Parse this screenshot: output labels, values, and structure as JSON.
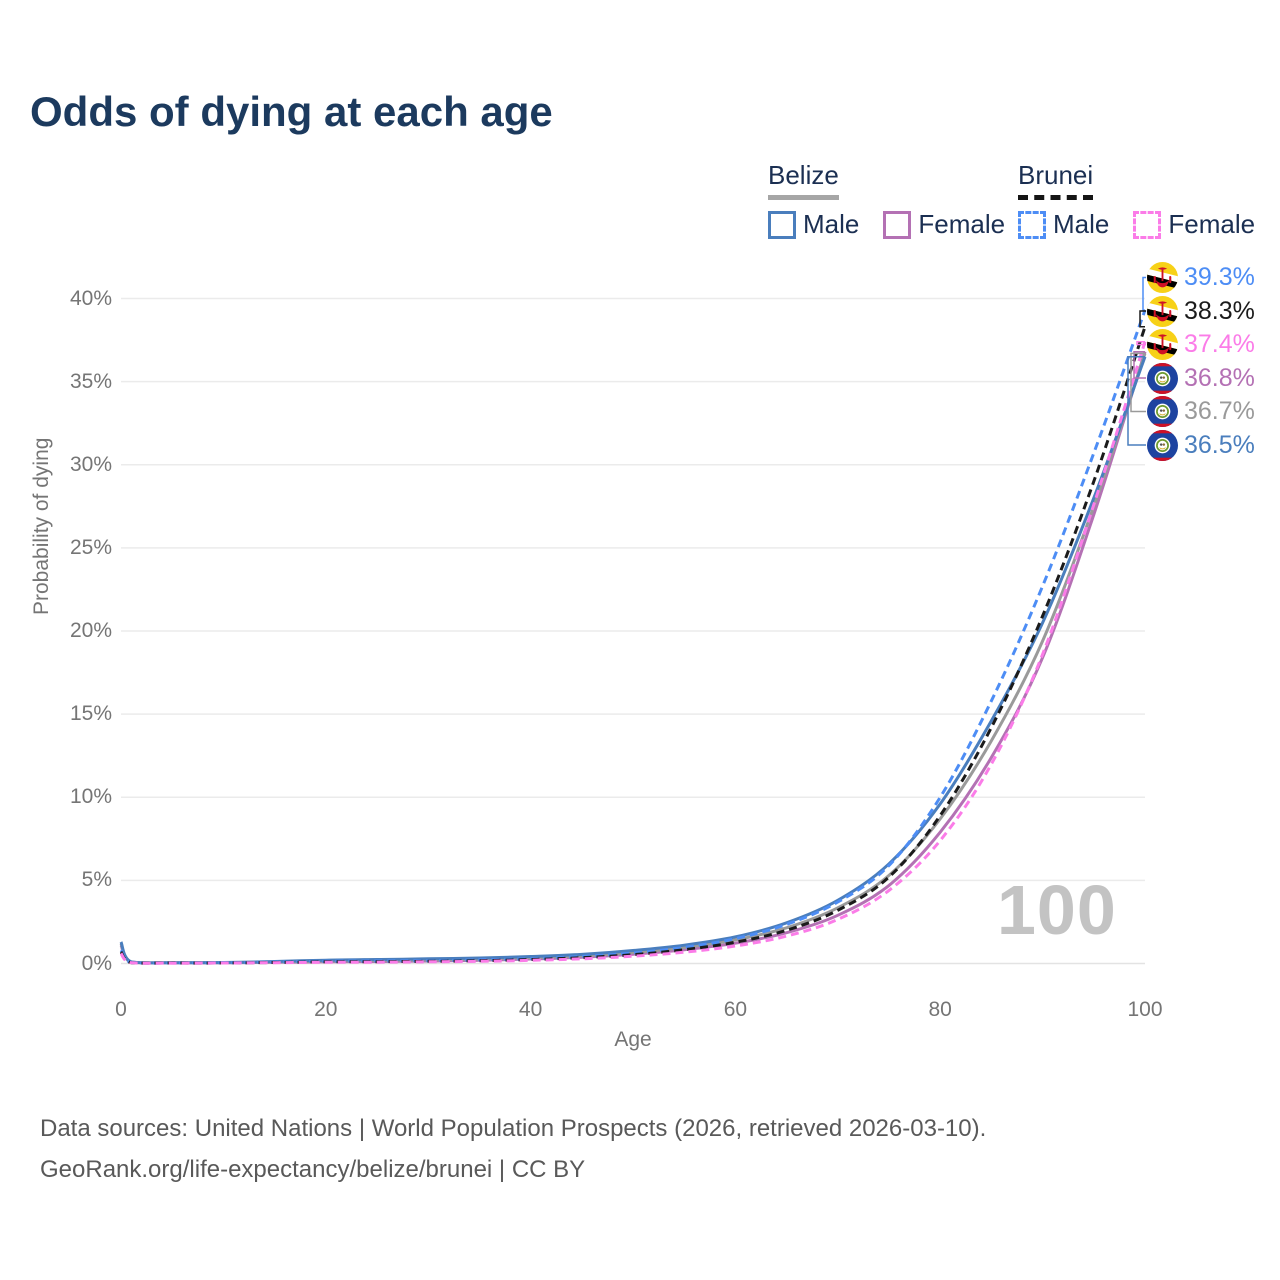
{
  "title": "Odds of dying at each age",
  "watermark": "100",
  "legend": {
    "groups": [
      {
        "country": "Belize",
        "line_style": "solid",
        "items": [
          {
            "label": "Male",
            "color": "#4a7ebd",
            "dash": false
          },
          {
            "label": "Female",
            "color": "#b471b4",
            "dash": false
          }
        ]
      },
      {
        "country": "Brunei",
        "line_style": "dashed",
        "items": [
          {
            "label": "Male",
            "color": "#4d8df5",
            "dash": true
          },
          {
            "label": "Female",
            "color": "#fb7ce8",
            "dash": true
          }
        ]
      }
    ]
  },
  "chart_data": {
    "type": "line",
    "title": "Odds of dying at each age",
    "xlabel": "Age",
    "ylabel": "Probability of dying",
    "xlim": [
      0,
      100
    ],
    "ylim_percent": [
      0,
      40
    ],
    "x_ticks": [
      0,
      20,
      40,
      60,
      80,
      100
    ],
    "y_ticks": [
      "0%",
      "5%",
      "10%",
      "15%",
      "20%",
      "25%",
      "30%",
      "35%",
      "40%"
    ],
    "grid": "horizontal",
    "legend_position": "top-right",
    "x": [
      0,
      1,
      5,
      10,
      15,
      20,
      25,
      30,
      35,
      40,
      45,
      50,
      55,
      60,
      65,
      70,
      75,
      80,
      85,
      90,
      95,
      100
    ],
    "series": [
      {
        "name": "Brunei Male",
        "country": "Brunei",
        "sex": "Male",
        "flag": "brunei",
        "color": "#4d8df5",
        "dash": true,
        "end_label": "39.3%",
        "values": [
          0.8,
          0.06,
          0.03,
          0.04,
          0.08,
          0.13,
          0.15,
          0.17,
          0.22,
          0.29,
          0.42,
          0.63,
          0.97,
          1.5,
          2.35,
          3.7,
          5.9,
          10.0,
          15.8,
          22.7,
          30.7,
          39.3
        ]
      },
      {
        "name": "Brunei Both sexes",
        "country": "Brunei",
        "sex": "Both",
        "flag": "brunei",
        "color": "#1b1b1b",
        "dash": true,
        "end_label": "38.3%",
        "values": [
          0.7,
          0.05,
          0.03,
          0.03,
          0.06,
          0.1,
          0.11,
          0.13,
          0.17,
          0.24,
          0.35,
          0.53,
          0.83,
          1.28,
          2.0,
          3.2,
          5.2,
          8.9,
          14.2,
          20.9,
          29.0,
          38.3
        ]
      },
      {
        "name": "Brunei Female",
        "country": "Brunei",
        "sex": "Female",
        "flag": "brunei",
        "color": "#fb7ce8",
        "dash": true,
        "end_label": "37.4%",
        "values": [
          0.6,
          0.04,
          0.02,
          0.03,
          0.05,
          0.07,
          0.08,
          0.1,
          0.13,
          0.19,
          0.28,
          0.44,
          0.68,
          1.05,
          1.65,
          2.65,
          4.4,
          7.4,
          12.0,
          18.6,
          27.6,
          37.4
        ]
      },
      {
        "name": "Belize Female",
        "country": "Belize",
        "sex": "Female",
        "flag": "belize",
        "color": "#b471b4",
        "dash": false,
        "end_label": "36.8%",
        "values": [
          1.1,
          0.08,
          0.04,
          0.04,
          0.07,
          0.1,
          0.12,
          0.15,
          0.19,
          0.27,
          0.38,
          0.56,
          0.83,
          1.22,
          1.85,
          2.9,
          4.7,
          7.9,
          12.4,
          18.4,
          27.0,
          36.8
        ]
      },
      {
        "name": "Belize Both sexes",
        "country": "Belize",
        "sex": "Both",
        "flag": "belize",
        "color": "#9a9a9a",
        "dash": false,
        "end_label": "36.7%",
        "values": [
          1.2,
          0.09,
          0.05,
          0.05,
          0.09,
          0.15,
          0.18,
          0.21,
          0.26,
          0.34,
          0.46,
          0.66,
          0.96,
          1.42,
          2.15,
          3.35,
          5.3,
          8.7,
          13.4,
          19.4,
          27.5,
          36.7
        ]
      },
      {
        "name": "Belize Male",
        "country": "Belize",
        "sex": "Male",
        "flag": "belize",
        "color": "#4a7ebd",
        "dash": false,
        "end_label": "36.5%",
        "values": [
          1.3,
          0.1,
          0.05,
          0.06,
          0.12,
          0.2,
          0.24,
          0.28,
          0.33,
          0.42,
          0.55,
          0.78,
          1.1,
          1.6,
          2.45,
          3.8,
          6.0,
          9.6,
          14.6,
          20.5,
          28.0,
          36.5
        ]
      }
    ]
  },
  "footer": {
    "line1": "Data sources: United Nations | World Population Prospects (2026, retrieved 2026-03-10).",
    "line2": "GeoRank.org/life-expectancy/belize/brunei | CC BY"
  }
}
